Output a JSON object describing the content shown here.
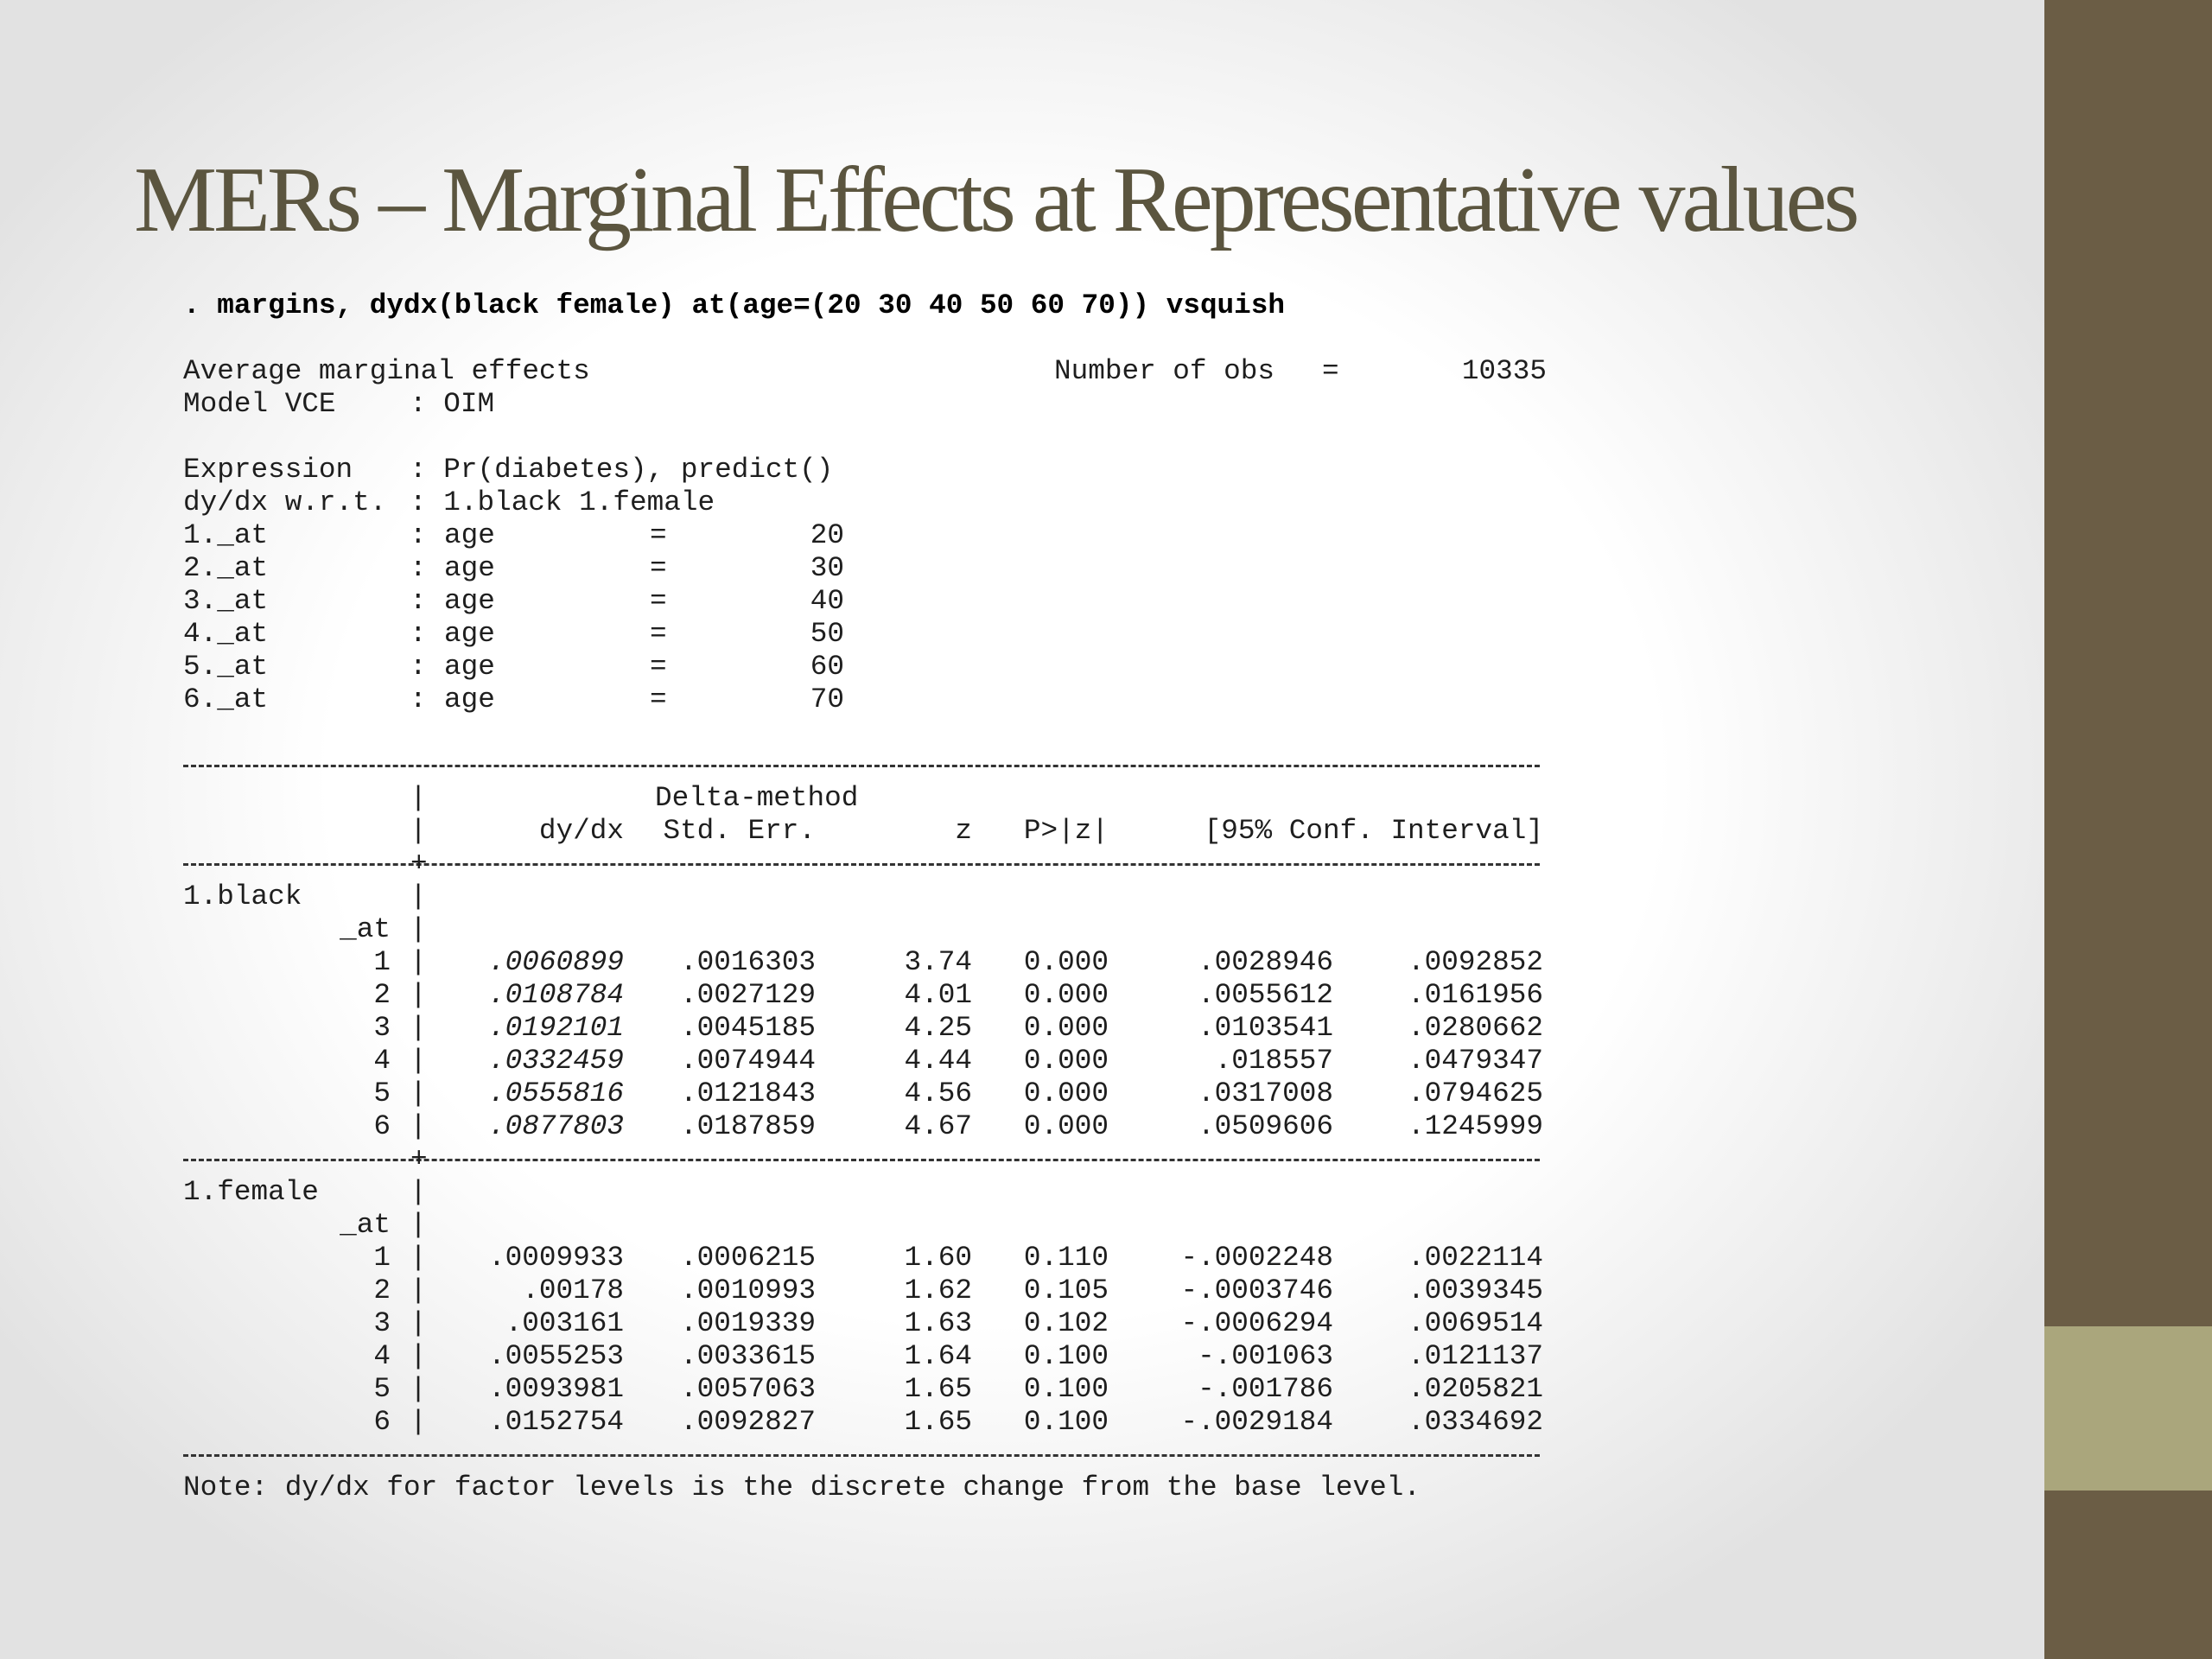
{
  "slide": {
    "title": "MERs – Marginal Effects at Representative values",
    "colors": {
      "title": "#5b553f",
      "sidebar": "#6b5d45",
      "sidebar_accent": "#aaa67c"
    }
  },
  "console": {
    "command": ". margins, dydx(black female) at(age=(20 30 40 50 60 70)) vsquish",
    "header": {
      "title": "Average marginal effects",
      "nobs_label": "Number of obs",
      "nobs_eq": "=",
      "nobs_value": "10335",
      "model_vce_label": "Model VCE",
      "model_vce_value": ": OIM",
      "expression_label": "Expression",
      "expression_value": ": Pr(diabetes), predict()",
      "dydx_label": "dy/dx w.r.t.",
      "dydx_value": ": 1.black 1.female"
    },
    "at_rows": [
      {
        "name": "1._at",
        "colon": ":",
        "var": "age",
        "eq": "=",
        "val": "20"
      },
      {
        "name": "2._at",
        "colon": ":",
        "var": "age",
        "eq": "=",
        "val": "30"
      },
      {
        "name": "3._at",
        "colon": ":",
        "var": "age",
        "eq": "=",
        "val": "40"
      },
      {
        "name": "4._at",
        "colon": ":",
        "var": "age",
        "eq": "=",
        "val": "50"
      },
      {
        "name": "5._at",
        "colon": ":",
        "var": "age",
        "eq": "=",
        "val": "60"
      },
      {
        "name": "6._at",
        "colon": ":",
        "var": "age",
        "eq": "=",
        "val": "70"
      }
    ],
    "table": {
      "header_top": "Delta-method",
      "columns": [
        "dy/dx",
        "Std. Err.",
        "z",
        "P>|z|",
        "[95% Conf. Interval]"
      ],
      "bar": "|",
      "at_label": "_at",
      "groups": [
        {
          "name": "1.black",
          "rows": [
            {
              "at": "1",
              "dydx": ".0060899",
              "se": ".0016303",
              "z": "3.74",
              "p": "0.000",
              "lo": ".0028946",
              "hi": ".0092852"
            },
            {
              "at": "2",
              "dydx": ".0108784",
              "se": ".0027129",
              "z": "4.01",
              "p": "0.000",
              "lo": ".0055612",
              "hi": ".0161956"
            },
            {
              "at": "3",
              "dydx": ".0192101",
              "se": ".0045185",
              "z": "4.25",
              "p": "0.000",
              "lo": ".0103541",
              "hi": ".0280662"
            },
            {
              "at": "4",
              "dydx": ".0332459",
              "se": ".0074944",
              "z": "4.44",
              "p": "0.000",
              "lo": ".018557",
              "hi": ".0479347"
            },
            {
              "at": "5",
              "dydx": ".0555816",
              "se": ".0121843",
              "z": "4.56",
              "p": "0.000",
              "lo": ".0317008",
              "hi": ".0794625"
            },
            {
              "at": "6",
              "dydx": ".0877803",
              "se": ".0187859",
              "z": "4.67",
              "p": "0.000",
              "lo": ".0509606",
              "hi": ".1245999"
            }
          ]
        },
        {
          "name": "1.female",
          "rows": [
            {
              "at": "1",
              "dydx": ".0009933",
              "se": ".0006215",
              "z": "1.60",
              "p": "0.110",
              "lo": "-.0002248",
              "hi": ".0022114"
            },
            {
              "at": "2",
              "dydx": ".00178",
              "se": ".0010993",
              "z": "1.62",
              "p": "0.105",
              "lo": "-.0003746",
              "hi": ".0039345"
            },
            {
              "at": "3",
              "dydx": ".003161",
              "se": ".0019339",
              "z": "1.63",
              "p": "0.102",
              "lo": "-.0006294",
              "hi": ".0069514"
            },
            {
              "at": "4",
              "dydx": ".0055253",
              "se": ".0033615",
              "z": "1.64",
              "p": "0.100",
              "lo": "-.001063",
              "hi": ".0121137"
            },
            {
              "at": "5",
              "dydx": ".0093981",
              "se": ".0057063",
              "z": "1.65",
              "p": "0.100",
              "lo": "-.001786",
              "hi": ".0205821"
            },
            {
              "at": "6",
              "dydx": ".0152754",
              "se": ".0092827",
              "z": "1.65",
              "p": "0.100",
              "lo": "-.0029184",
              "hi": ".0334692"
            }
          ]
        }
      ]
    },
    "note": "Note: dy/dx for factor levels is the discrete change from the base level."
  }
}
